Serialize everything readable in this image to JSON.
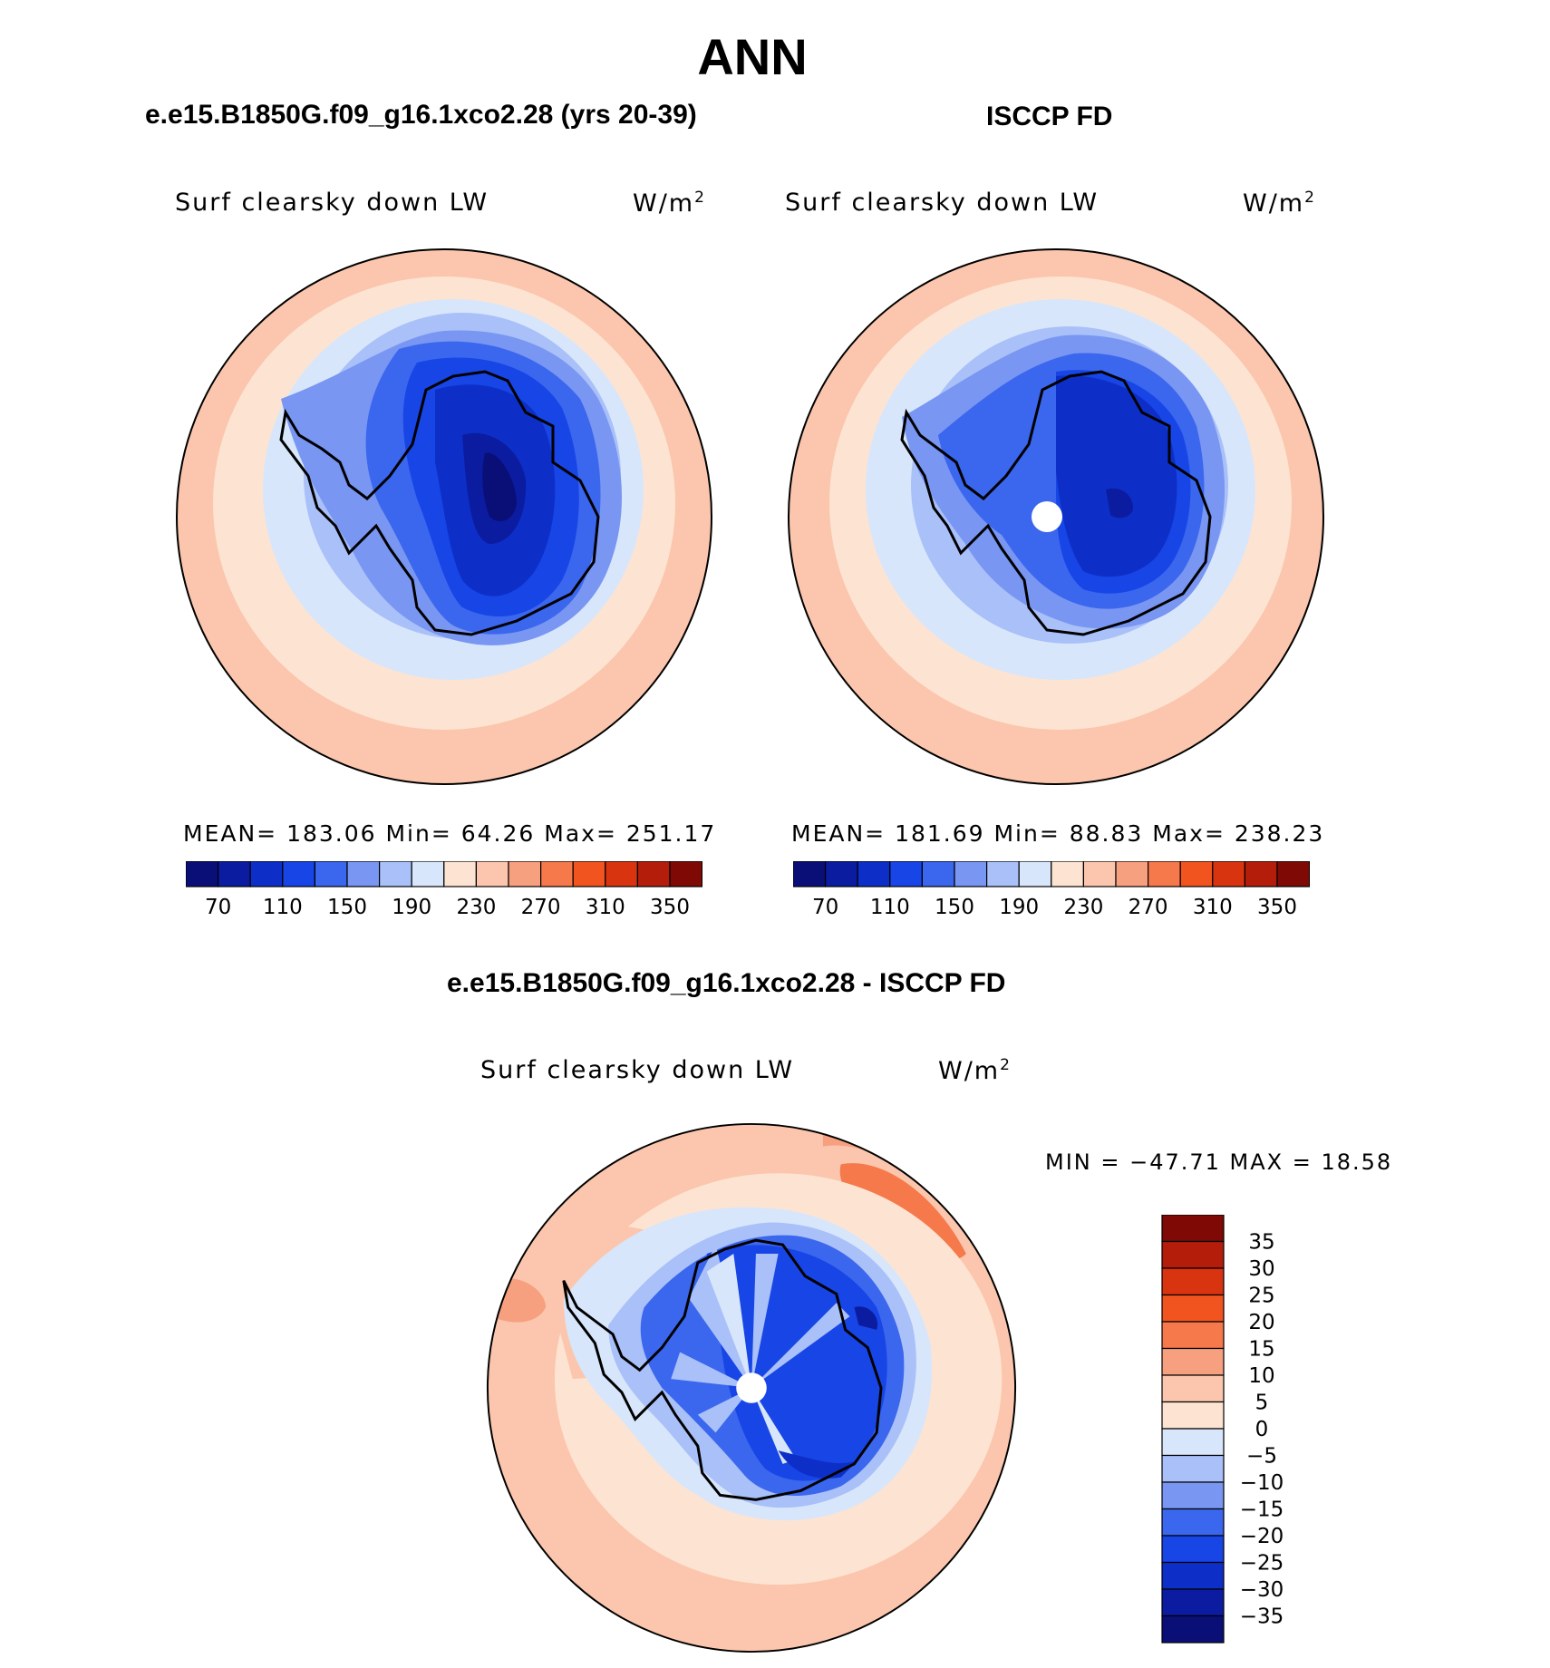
{
  "title": "ANN",
  "panels": [
    {
      "case_title": "e.e15.B1850G.f09_g16.1xco2.28 (yrs 20-39)",
      "variable": "Surf clearsky down LW",
      "units_base": "W/m",
      "units_exp": "2",
      "stats": "MEAN= 183.06   Min=  64.26   Max= 251.17",
      "mean": 183.06,
      "min": 64.26,
      "max": 251.17
    },
    {
      "case_title": "ISCCP FD",
      "variable": "Surf clearsky down LW",
      "units_base": "W/m",
      "units_exp": "2",
      "stats": "MEAN= 181.69   Min=  88.83   Max= 238.23",
      "mean": 181.69,
      "min": 88.83,
      "max": 238.23
    }
  ],
  "diff_panel": {
    "case_title": "e.e15.B1850G.f09_g16.1xco2.28 - ISCCP FD",
    "variable": "Surf clearsky down LW",
    "units_base": "W/m",
    "units_exp": "2",
    "stats": "MIN = −47.71  MAX =   18.58",
    "min": -47.71,
    "max": 18.58
  },
  "colorbar_fields": {
    "colors": [
      "#0a0f78",
      "#0b1ca0",
      "#0d2fc8",
      "#1845e6",
      "#3b66ee",
      "#7896f2",
      "#a9c0f8",
      "#d7e6fb",
      "#fde4d2",
      "#fbc6ad",
      "#f7a07f",
      "#f5794a",
      "#f2541f",
      "#d93410",
      "#b31d0a",
      "#7f0a05"
    ],
    "labels": [
      "70",
      "110",
      "150",
      "190",
      "230",
      "270",
      "310",
      "350"
    ]
  },
  "colorbar_diff": {
    "colors": [
      "#0a0f78",
      "#0b1ca0",
      "#0d2fc8",
      "#1845e6",
      "#3b66ee",
      "#7896f2",
      "#a9c0f8",
      "#d7e6fb",
      "#fde4d2",
      "#fbc6ad",
      "#f7a07f",
      "#f5794a",
      "#f2541f",
      "#d93410",
      "#b31d0a",
      "#7f0a05"
    ],
    "labels": [
      "35",
      "30",
      "25",
      "20",
      "15",
      "10",
      "5",
      "0",
      "−5",
      "−10",
      "−15",
      "−20",
      "−25",
      "−30",
      "−35"
    ]
  }
}
